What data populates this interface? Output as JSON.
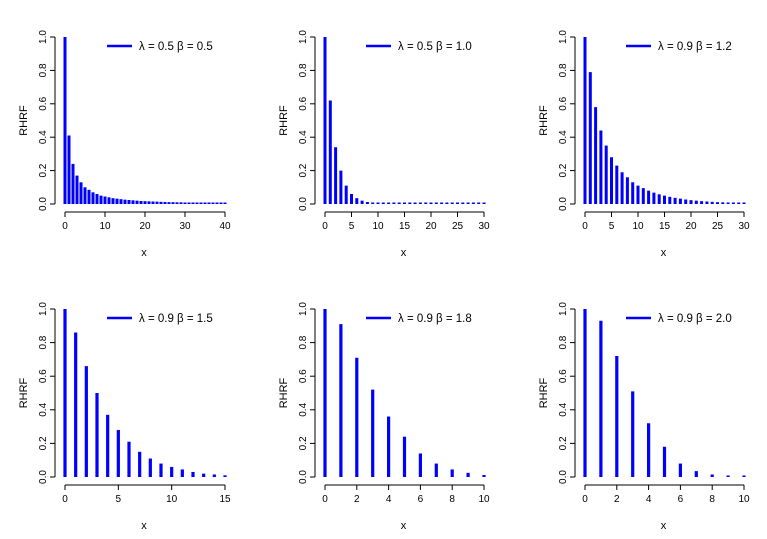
{
  "colors": {
    "series": "#0000ff",
    "axis": "#000000",
    "background": "#ffffff"
  },
  "chart_data": [
    {
      "type": "bar",
      "style": "spikes",
      "ylabel": "RHRF",
      "xlabel": "x",
      "legend": {
        "label": "λ = 0.5 β = 0.5",
        "position": "top-right"
      },
      "xlim": [
        0,
        40
      ],
      "ylim": [
        0,
        1
      ],
      "xticks": [
        0,
        10,
        20,
        30,
        40
      ],
      "yticks": [
        "0.0",
        "0.2",
        "0.4",
        "0.6",
        "0.8",
        "1.0"
      ],
      "x": [
        0,
        1,
        2,
        3,
        4,
        5,
        6,
        7,
        8,
        9,
        10,
        11,
        12,
        13,
        14,
        15,
        16,
        17,
        18,
        19,
        20,
        21,
        22,
        23,
        24,
        25,
        26,
        27,
        28,
        29,
        30,
        31,
        32,
        33,
        34,
        35,
        36,
        37,
        38,
        39,
        40
      ],
      "values": [
        1.0,
        0.41,
        0.24,
        0.17,
        0.13,
        0.1,
        0.085,
        0.07,
        0.06,
        0.05,
        0.045,
        0.04,
        0.035,
        0.032,
        0.029,
        0.026,
        0.024,
        0.022,
        0.02,
        0.018,
        0.017,
        0.016,
        0.015,
        0.014,
        0.013,
        0.012,
        0.011,
        0.011,
        0.01,
        0.01,
        0.009,
        0.009,
        0.008,
        0.008,
        0.008,
        0.007,
        0.007,
        0.007,
        0.006,
        0.006,
        0.006
      ]
    },
    {
      "type": "bar",
      "style": "spikes",
      "ylabel": "RHRF",
      "xlabel": "x",
      "legend": {
        "label": "λ = 0.5 β = 1.0",
        "position": "top-right"
      },
      "xlim": [
        0,
        30
      ],
      "ylim": [
        0,
        1
      ],
      "xticks": [
        0,
        5,
        10,
        15,
        20,
        25,
        30
      ],
      "yticks": [
        "0.0",
        "0.2",
        "0.4",
        "0.6",
        "0.8",
        "1.0"
      ],
      "x": [
        0,
        1,
        2,
        3,
        4,
        5,
        6,
        7,
        8,
        9,
        10,
        11,
        12,
        13,
        14,
        15,
        16,
        17,
        18,
        19,
        20,
        21,
        22,
        23,
        24,
        25,
        26,
        27,
        28,
        29,
        30
      ],
      "values": [
        1.0,
        0.62,
        0.34,
        0.2,
        0.11,
        0.06,
        0.035,
        0.02,
        0.012,
        0.007,
        0.004,
        0.002,
        0.001,
        0.001,
        0.0,
        0.0,
        0.0,
        0.0,
        0.0,
        0.0,
        0.0,
        0.0,
        0.0,
        0.0,
        0.0,
        0.0,
        0.0,
        0.0,
        0.0,
        0.0,
        0.0
      ]
    },
    {
      "type": "bar",
      "style": "spikes",
      "ylabel": "RHRF",
      "xlabel": "x",
      "legend": {
        "label": "λ = 0.9 β = 1.2",
        "position": "top-right"
      },
      "xlim": [
        0,
        30
      ],
      "ylim": [
        0,
        1
      ],
      "xticks": [
        0,
        5,
        10,
        15,
        20,
        25,
        30
      ],
      "yticks": [
        "0.0",
        "0.2",
        "0.4",
        "0.6",
        "0.8",
        "1.0"
      ],
      "x": [
        0,
        1,
        2,
        3,
        4,
        5,
        6,
        7,
        8,
        9,
        10,
        11,
        12,
        13,
        14,
        15,
        16,
        17,
        18,
        19,
        20,
        21,
        22,
        23,
        24,
        25,
        26,
        27,
        28,
        29,
        30
      ],
      "values": [
        1.0,
        0.79,
        0.58,
        0.44,
        0.35,
        0.28,
        0.23,
        0.19,
        0.16,
        0.13,
        0.11,
        0.095,
        0.08,
        0.068,
        0.058,
        0.05,
        0.043,
        0.037,
        0.032,
        0.027,
        0.023,
        0.02,
        0.017,
        0.015,
        0.013,
        0.011,
        0.01,
        0.008,
        0.007,
        0.006,
        0.005
      ]
    },
    {
      "type": "bar",
      "style": "spikes",
      "ylabel": "RHRF",
      "xlabel": "x",
      "legend": {
        "label": "λ = 0.9 β = 1.5",
        "position": "top-right"
      },
      "xlim": [
        0,
        15
      ],
      "ylim": [
        0,
        1
      ],
      "xticks": [
        0,
        5,
        10,
        15
      ],
      "yticks": [
        "0.0",
        "0.2",
        "0.4",
        "0.6",
        "0.8",
        "1.0"
      ],
      "x": [
        0,
        1,
        2,
        3,
        4,
        5,
        6,
        7,
        8,
        9,
        10,
        11,
        12,
        13,
        14,
        15
      ],
      "values": [
        1.0,
        0.86,
        0.66,
        0.5,
        0.37,
        0.28,
        0.21,
        0.15,
        0.11,
        0.08,
        0.06,
        0.045,
        0.03,
        0.02,
        0.015,
        0.01
      ]
    },
    {
      "type": "bar",
      "style": "spikes",
      "ylabel": "RHRF",
      "xlabel": "x",
      "legend": {
        "label": "λ = 0.9 β = 1.8",
        "position": "top-right"
      },
      "xlim": [
        0,
        10
      ],
      "ylim": [
        0,
        1
      ],
      "xticks": [
        0,
        2,
        4,
        6,
        8,
        10
      ],
      "yticks": [
        "0.0",
        "0.2",
        "0.4",
        "0.6",
        "0.8",
        "1.0"
      ],
      "x": [
        0,
        1,
        2,
        3,
        4,
        5,
        6,
        7,
        8,
        9,
        10
      ],
      "values": [
        1.0,
        0.91,
        0.71,
        0.52,
        0.36,
        0.24,
        0.14,
        0.08,
        0.045,
        0.025,
        0.012
      ]
    },
    {
      "type": "bar",
      "style": "spikes",
      "ylabel": "RHRF",
      "xlabel": "x",
      "legend": {
        "label": "λ = 0.9 β = 2.0",
        "position": "top-right"
      },
      "xlim": [
        0,
        10
      ],
      "ylim": [
        0,
        1
      ],
      "xticks": [
        0,
        2,
        4,
        6,
        8,
        10
      ],
      "yticks": [
        "0.0",
        "0.2",
        "0.4",
        "0.6",
        "0.8",
        "1.0"
      ],
      "x": [
        0,
        1,
        2,
        3,
        4,
        5,
        6,
        7,
        8,
        9,
        10
      ],
      "values": [
        1.0,
        0.93,
        0.72,
        0.51,
        0.32,
        0.18,
        0.08,
        0.035,
        0.015,
        0.006,
        0.002
      ]
    }
  ]
}
